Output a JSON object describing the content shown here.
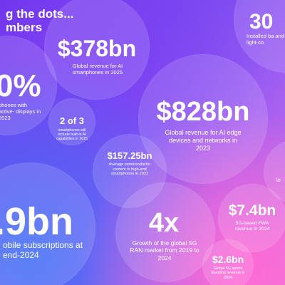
{
  "header": {
    "line1": "g the dots...",
    "line2": "mbers"
  },
  "stats": [
    {
      "value": "$378bn",
      "caption": "Global revenue for AI smartphones in 2025"
    },
    {
      "value": "30",
      "caption": "Installed ba and light-co"
    },
    {
      "value": "0%",
      "caption": "phones with active- displays in 2023"
    },
    {
      "value": "2 of 3",
      "caption": "smartphones will include built-in AI capabilities in 2025"
    },
    {
      "value": "$828bn",
      "caption": "Global revenue for AI edge devices and networks in 2023"
    },
    {
      "value": "$157.25bn",
      "caption": "Average semiconductor content in high-end smartphones in 2022"
    },
    {
      "value": ".9bn",
      "caption": "obile subscriptions at end-2024"
    },
    {
      "value": "4x",
      "caption": "Growth of the global 5G RAN market from 2019 to 2024"
    },
    {
      "value": "$7.4bn",
      "caption": "5G-based FWA revenue in 2024"
    },
    {
      "value": "$2.6bn",
      "caption": "Global 5G sports bundling revenue in 2024"
    },
    {
      "value": "",
      "caption": "lo"
    }
  ]
}
